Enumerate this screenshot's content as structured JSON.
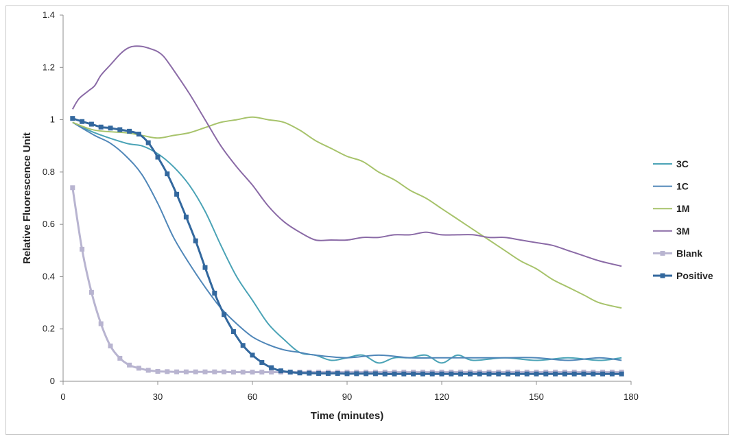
{
  "chart_data": {
    "type": "line",
    "title": "",
    "xlabel": "Time (minutes)",
    "ylabel": "Relative Fluorescence Unit",
    "xlim": [
      0,
      180
    ],
    "ylim": [
      0,
      1.4
    ],
    "xticks": [
      "0",
      "30",
      "60",
      "90",
      "120",
      "150",
      "180"
    ],
    "yticks": [
      "0",
      "0.2",
      "0.4",
      "0.6",
      "0.8",
      "1",
      "1.2",
      "1.4"
    ],
    "grid": false,
    "legend": "right",
    "series": [
      {
        "name": "3C",
        "color": "#4aa3b6",
        "marker": "none",
        "x": [
          3,
          10,
          20,
          25,
          30,
          35,
          40,
          45,
          50,
          55,
          60,
          65,
          70,
          75,
          80,
          85,
          90,
          95,
          100,
          105,
          110,
          115,
          120,
          125,
          130,
          140,
          150,
          160,
          170,
          177
        ],
        "y": [
          0.99,
          0.95,
          0.91,
          0.9,
          0.87,
          0.82,
          0.75,
          0.65,
          0.52,
          0.4,
          0.31,
          0.22,
          0.16,
          0.11,
          0.1,
          0.08,
          0.09,
          0.1,
          0.07,
          0.09,
          0.09,
          0.1,
          0.07,
          0.1,
          0.08,
          0.09,
          0.08,
          0.09,
          0.08,
          0.09
        ]
      },
      {
        "name": "1C",
        "color": "#4f86b8",
        "marker": "none",
        "x": [
          3,
          10,
          15,
          20,
          25,
          30,
          35,
          40,
          45,
          50,
          55,
          60,
          65,
          70,
          75,
          80,
          90,
          100,
          110,
          120,
          130,
          140,
          150,
          160,
          170,
          177
        ],
        "y": [
          0.99,
          0.94,
          0.91,
          0.86,
          0.79,
          0.68,
          0.55,
          0.45,
          0.36,
          0.28,
          0.22,
          0.17,
          0.14,
          0.12,
          0.11,
          0.1,
          0.09,
          0.1,
          0.09,
          0.09,
          0.09,
          0.09,
          0.09,
          0.08,
          0.09,
          0.08
        ]
      },
      {
        "name": "1M",
        "color": "#a7c36b",
        "marker": "none",
        "x": [
          3,
          10,
          20,
          25,
          30,
          35,
          40,
          45,
          50,
          55,
          60,
          65,
          70,
          75,
          80,
          85,
          90,
          95,
          100,
          105,
          110,
          115,
          120,
          125,
          130,
          135,
          140,
          145,
          150,
          155,
          160,
          165,
          170,
          177
        ],
        "y": [
          0.99,
          0.96,
          0.95,
          0.94,
          0.93,
          0.94,
          0.95,
          0.97,
          0.99,
          1.0,
          1.01,
          1.0,
          0.99,
          0.96,
          0.92,
          0.89,
          0.86,
          0.84,
          0.8,
          0.77,
          0.73,
          0.7,
          0.66,
          0.62,
          0.58,
          0.54,
          0.5,
          0.46,
          0.43,
          0.39,
          0.36,
          0.33,
          0.3,
          0.28
        ]
      },
      {
        "name": "3M",
        "color": "#8a6aa6",
        "marker": "none",
        "x": [
          3,
          5,
          8,
          10,
          12,
          15,
          18,
          20,
          22,
          25,
          28,
          30,
          32,
          35,
          40,
          45,
          50,
          55,
          60,
          65,
          70,
          75,
          80,
          85,
          90,
          95,
          100,
          105,
          110,
          115,
          120,
          125,
          130,
          135,
          140,
          145,
          150,
          155,
          160,
          165,
          170,
          177
        ],
        "y": [
          1.04,
          1.08,
          1.11,
          1.13,
          1.17,
          1.21,
          1.25,
          1.27,
          1.28,
          1.28,
          1.27,
          1.26,
          1.24,
          1.19,
          1.1,
          1.0,
          0.9,
          0.82,
          0.75,
          0.67,
          0.61,
          0.57,
          0.54,
          0.54,
          0.54,
          0.55,
          0.55,
          0.56,
          0.56,
          0.57,
          0.56,
          0.56,
          0.56,
          0.55,
          0.55,
          0.54,
          0.53,
          0.52,
          0.5,
          0.48,
          0.46,
          0.44
        ]
      },
      {
        "name": "Blank",
        "color": "#b8b4d0",
        "marker": "square",
        "x": [
          3,
          6,
          9,
          12,
          15,
          18,
          21,
          24,
          27,
          30,
          33,
          36,
          39,
          42,
          45,
          48,
          51,
          54,
          57,
          60,
          63,
          66,
          69,
          72,
          75,
          78,
          81,
          84,
          87,
          90,
          93,
          96,
          99,
          102,
          105,
          108,
          111,
          114,
          117,
          120,
          123,
          126,
          129,
          132,
          135,
          138,
          141,
          144,
          147,
          150,
          153,
          156,
          159,
          162,
          165,
          168,
          171,
          174,
          177
        ],
        "y": [
          0.74,
          0.505,
          0.34,
          0.22,
          0.135,
          0.088,
          0.062,
          0.05,
          0.042,
          0.038,
          0.037,
          0.036,
          0.036,
          0.036,
          0.036,
          0.036,
          0.036,
          0.035,
          0.035,
          0.035,
          0.035,
          0.035,
          0.035,
          0.035,
          0.035,
          0.035,
          0.035,
          0.035,
          0.035,
          0.035,
          0.035,
          0.035,
          0.035,
          0.035,
          0.035,
          0.035,
          0.035,
          0.035,
          0.035,
          0.035,
          0.035,
          0.035,
          0.035,
          0.035,
          0.035,
          0.035,
          0.035,
          0.035,
          0.035,
          0.035,
          0.035,
          0.035,
          0.035,
          0.035,
          0.035,
          0.035,
          0.035,
          0.035,
          0.035
        ]
      },
      {
        "name": "Positive",
        "color": "#33689e",
        "marker": "square",
        "x": [
          3,
          6,
          9,
          12,
          15,
          18,
          21,
          24,
          27,
          30,
          33,
          36,
          39,
          42,
          45,
          48,
          51,
          54,
          57,
          60,
          63,
          66,
          69,
          72,
          75,
          78,
          81,
          84,
          87,
          90,
          93,
          96,
          99,
          102,
          105,
          108,
          111,
          114,
          117,
          120,
          123,
          126,
          129,
          132,
          135,
          138,
          141,
          144,
          147,
          150,
          153,
          156,
          159,
          162,
          165,
          168,
          171,
          174,
          177
        ],
        "y": [
          1.005,
          0.993,
          0.983,
          0.972,
          0.968,
          0.962,
          0.956,
          0.945,
          0.912,
          0.857,
          0.793,
          0.715,
          0.628,
          0.537,
          0.435,
          0.337,
          0.255,
          0.19,
          0.137,
          0.1,
          0.072,
          0.052,
          0.04,
          0.035,
          0.032,
          0.031,
          0.03,
          0.03,
          0.03,
          0.029,
          0.029,
          0.029,
          0.029,
          0.028,
          0.028,
          0.028,
          0.028,
          0.028,
          0.028,
          0.028,
          0.028,
          0.028,
          0.028,
          0.028,
          0.028,
          0.028,
          0.028,
          0.028,
          0.028,
          0.028,
          0.028,
          0.028,
          0.028,
          0.028,
          0.028,
          0.028,
          0.028,
          0.028,
          0.028
        ]
      }
    ]
  }
}
